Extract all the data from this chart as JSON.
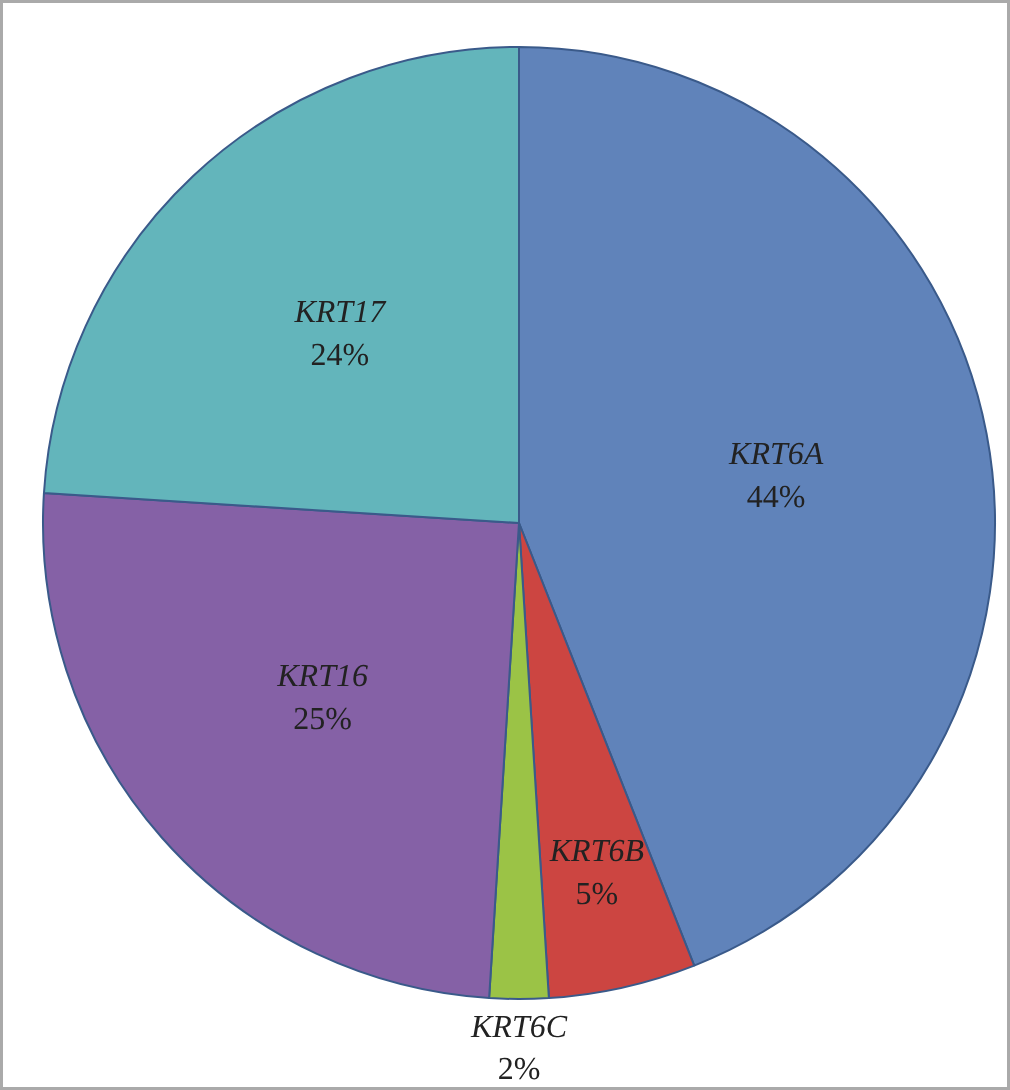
{
  "chart_data": {
    "type": "pie",
    "categories": [
      "KRT6A",
      "KRT6B",
      "KRT6C",
      "KRT16",
      "KRT17"
    ],
    "values": [
      44,
      5,
      2,
      25,
      24
    ],
    "colors": [
      "#6083ba",
      "#cc4541",
      "#9bc346",
      "#8561a6",
      "#63b5bb"
    ],
    "value_labels": [
      "44%",
      "5%",
      "2%",
      "25%",
      "24%"
    ]
  }
}
